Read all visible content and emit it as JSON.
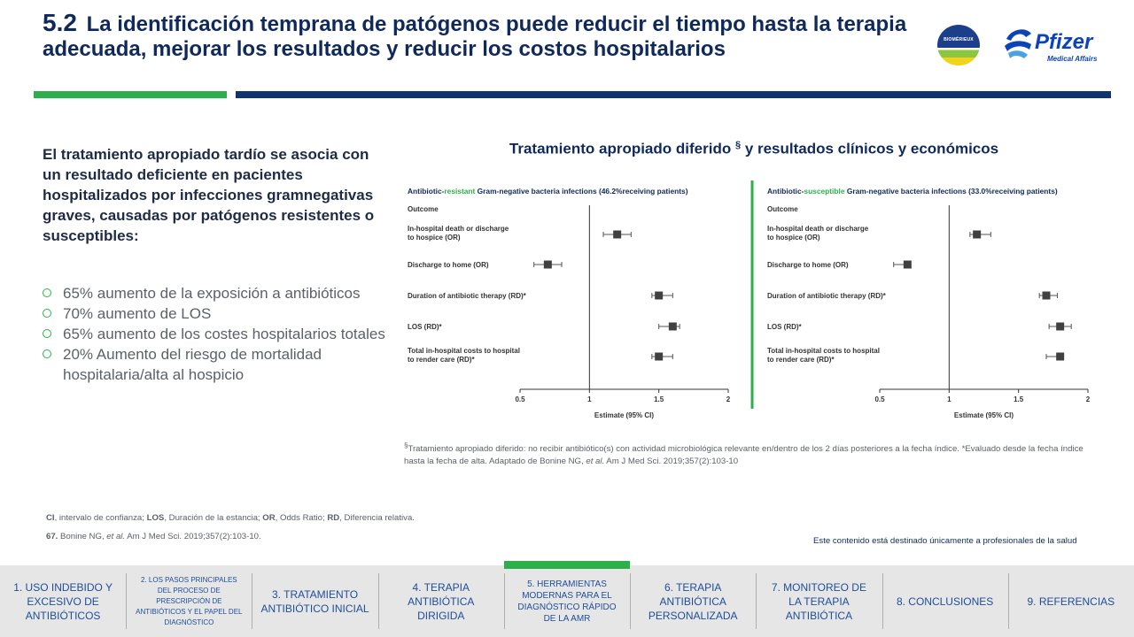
{
  "header": {
    "number": "5.2",
    "title": "La identificación temprana de patógenos puede reducir el tiempo hasta la terapia adecuada, mejorar los resultados y reducir los costos hospitalarios"
  },
  "logos": {
    "biomerieux": "BIOMÉRIEUX",
    "pfizer": "Pfizer",
    "pfizer_sub": "Medical Affairs"
  },
  "left": {
    "lead": "El tratamiento apropiado tardío se asocia con un resultado deficiente en pacientes hospitalizados por infecciones gramnegativas graves, causadas por patógenos resistentes o susceptibles:",
    "bullets": [
      "65% aumento de la exposición a antibióticos",
      "70% aumento de LOS",
      "65% aumento de los costes hospitalarios totales",
      "20% Aumento del riesgo de mortalidad hospitalaria/alta al hospicio"
    ]
  },
  "chart_title": {
    "before": "Tratamiento apropiado diferido",
    "sup": "§",
    "after": " y resultados clínicos y económicos"
  },
  "chart_data": [
    {
      "type": "scatter",
      "panel_title_prefix": "Antibiotic-",
      "panel_title_highlight": "resistant",
      "panel_title_suffix": " Gram-negative bacteria infections (46.2%receiving patients)",
      "outcome_header": "Outcome",
      "outcomes": [
        {
          "label": [
            "In-hospital death or discharge",
            "to hospice (OR)"
          ],
          "estimate": 1.2,
          "ci": [
            1.1,
            1.3
          ]
        },
        {
          "label": [
            "Discharge to home (OR)"
          ],
          "estimate": 0.7,
          "ci": [
            0.6,
            0.8
          ]
        },
        {
          "label": [
            "Duration of antibiotic therapy (RD)*"
          ],
          "estimate": 1.5,
          "ci": [
            1.45,
            1.6
          ]
        },
        {
          "label": [
            "LOS (RD)*"
          ],
          "estimate": 1.6,
          "ci": [
            1.5,
            1.65
          ]
        },
        {
          "label": [
            "Total in-hospital costs to hospital",
            "to render care (RD)*"
          ],
          "estimate": 1.5,
          "ci": [
            1.45,
            1.6
          ]
        }
      ],
      "xlim": [
        0.5,
        2
      ],
      "xticks": [
        "0.5",
        "1",
        "1.5",
        "2"
      ],
      "reference_line": 1,
      "xlabel": "Estimate (95% CI)"
    },
    {
      "type": "scatter",
      "panel_title_prefix": "Antibiotic-",
      "panel_title_highlight": "susceptible",
      "panel_title_suffix": " Gram-negative bacteria infections (33.0%receiving patients)",
      "outcome_header": "Outcome",
      "outcomes": [
        {
          "label": [
            "In-hospital death or discharge",
            "to hospice (OR)"
          ],
          "estimate": 1.2,
          "ci": [
            1.15,
            1.3
          ]
        },
        {
          "label": [
            "Discharge to home (OR)"
          ],
          "estimate": 0.7,
          "ci": [
            0.6,
            0.7
          ]
        },
        {
          "label": [
            "Duration of antibiotic therapy (RD)*"
          ],
          "estimate": 1.7,
          "ci": [
            1.65,
            1.78
          ]
        },
        {
          "label": [
            "LOS (RD)*"
          ],
          "estimate": 1.8,
          "ci": [
            1.72,
            1.88
          ]
        },
        {
          "label": [
            "Total in-hospital costs to hospital",
            "to render care (RD)*"
          ],
          "estimate": 1.8,
          "ci": [
            1.7,
            1.8
          ]
        }
      ],
      "xlim": [
        0.5,
        2
      ],
      "xticks": [
        "0.5",
        "1",
        "1.5",
        "2"
      ],
      "reference_line": 1,
      "xlabel": "Estimate (95% CI)"
    }
  ],
  "colors": {
    "navy": "#0f2a5a",
    "green": "#2db04b",
    "resistant": "#2db04b",
    "susceptible": "#2db04b",
    "marker": "#404040"
  },
  "footnote": {
    "mark": "§",
    "text_before": "Tratamiento apropiado diferido: no recibir antibiótico(s) con actividad microbiológica relevante en/dentro de los 2 días posteriores a la fecha índice. *Evaluado desde la fecha índice hasta la fecha de alta. Adaptado de Bonine NG, ",
    "etal": "et al.",
    "text_after": " Am J Med Sci. 2019;357(2):103-10"
  },
  "abbreviations": [
    {
      "term": "CI",
      "def": ", intervalo de confianza; "
    },
    {
      "term": "LOS",
      "def": ", Duración de la estancia; "
    },
    {
      "term": "OR",
      "def": ", Odds Ratio; "
    },
    {
      "term": "RD",
      "def": ", Diferencia relativa."
    }
  ],
  "reference": {
    "num": "67.",
    "before": " Bonine NG, ",
    "etal": "et al.",
    "after": " Am J Med Sci. 2019;357(2):103-10."
  },
  "disclaimer": "Este contenido está destinado únicamente a profesionales de la salud",
  "nav": [
    {
      "label": "1. USO INDEBIDO Y EXCESIVO DE ANTIBIÓTICOS"
    },
    {
      "label": "2. LOS PASOS PRINCIPALES DEL PROCESO DE PRESCRIPCIÓN DE ANTIBIÓTICOS Y EL PAPEL DEL DIAGNÓSTICO"
    },
    {
      "label": "3. TRATAMIENTO ANTIBIÓTICO INICIAL"
    },
    {
      "label": "4. TERAPIA ANTIBIÓTICA DIRIGIDA"
    },
    {
      "label": "5. HERRAMIENTAS MODERNAS PARA EL DIAGNÓSTICO RÁPIDO DE LA AMR"
    },
    {
      "label": "6. TERAPIA ANTIBIÓTICA PERSONALIZADA"
    },
    {
      "label": "7. MONITOREO DE LA TERAPIA ANTIBIÓTICA"
    },
    {
      "label": "8. CONCLUSIONES"
    },
    {
      "label": "9. REFERENCIAS"
    }
  ]
}
